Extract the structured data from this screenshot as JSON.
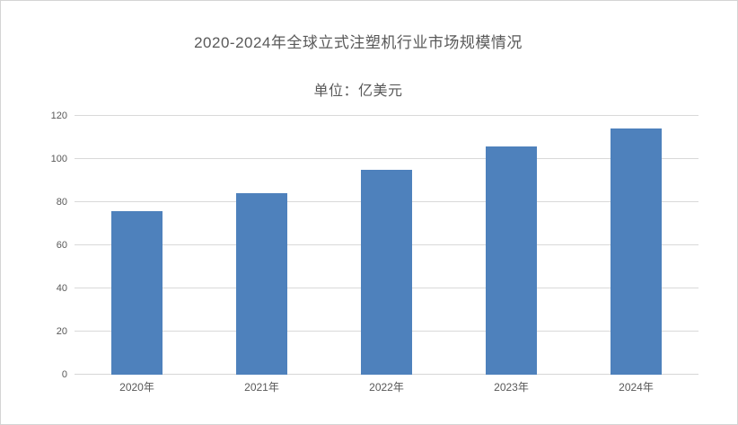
{
  "window": {
    "background": "#ffffff",
    "border_color": "#d4d4d4"
  },
  "chart_data": {
    "type": "bar",
    "title": "2020-2024年全球立式注塑机行业市场规模情况",
    "unit": "单位：亿美元",
    "categories": [
      "2020年",
      "2021年",
      "2022年",
      "2023年",
      "2024年"
    ],
    "values": [
      76,
      84,
      95,
      106,
      114
    ],
    "xlabel": "",
    "ylabel": "",
    "ylim": [
      0,
      120
    ],
    "yticks": [
      0,
      20,
      40,
      60,
      80,
      100,
      120
    ],
    "grid": "horizontal",
    "legend": "none",
    "colors": {
      "bar": "#4e81bc",
      "gridline": "#d9d9d9",
      "axis_line": "#d6d6d6",
      "tick_label": "#595959",
      "title": "#595959"
    }
  }
}
